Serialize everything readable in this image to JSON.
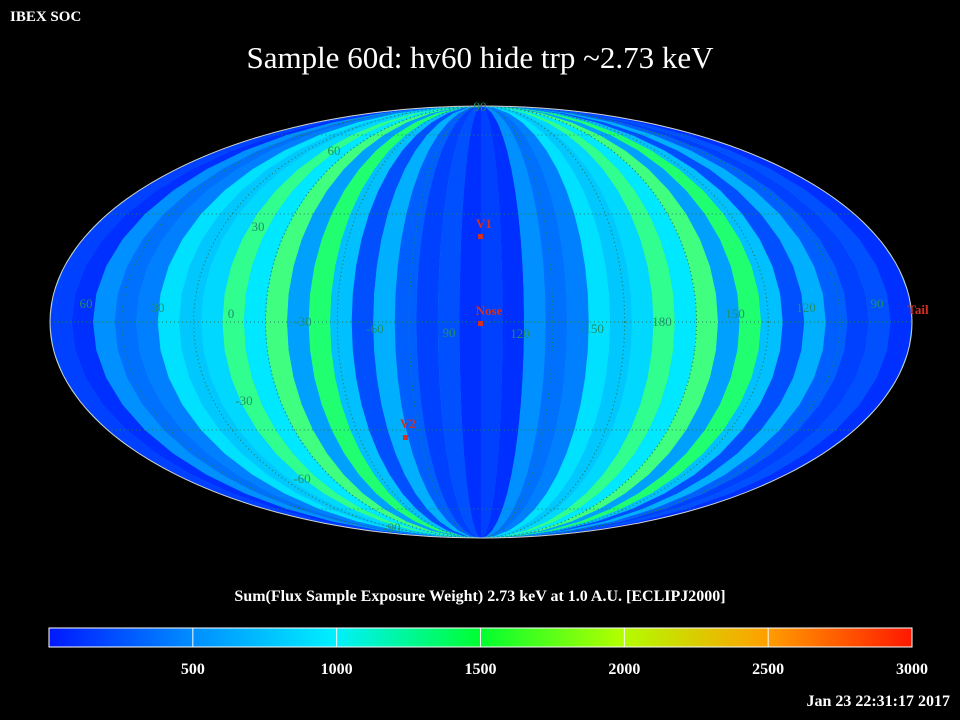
{
  "header": {
    "soc_label": "IBEX SOC",
    "title": "Sample 60d: hv60 hide trp ~2.73 keV"
  },
  "map": {
    "projection": "Mollweide (ecliptic J2000)",
    "longitude_labels": [
      "60",
      "30",
      "0",
      "-30",
      "-60",
      "90",
      "120",
      "-150",
      "180",
      "150",
      "120",
      "90"
    ],
    "latitude_labels": [
      "90",
      "60",
      "30",
      "-30",
      "-60",
      "-90"
    ],
    "markers": [
      {
        "name": "V1",
        "color": "#d23020"
      },
      {
        "name": "Nose",
        "color": "#d23020"
      },
      {
        "name": "V2",
        "color": "#d23020"
      },
      {
        "name": "Tail",
        "color": "#d23020"
      }
    ]
  },
  "colorbar": {
    "caption": "Sum(Flux Sample Exposure Weight)  2.73 keV at 1.0 A.U. [ECLIPJ2000]",
    "min": 0,
    "max": 3000,
    "ticks": [
      "500",
      "1000",
      "1500",
      "2000",
      "2500",
      "3000"
    ],
    "colors": [
      "#0020ff",
      "#00e8ff",
      "#00ff40",
      "#a0ff00",
      "#ffff00",
      "#ff2000"
    ]
  },
  "footer": {
    "timestamp": "Jan 23 22:31:17 2017"
  }
}
